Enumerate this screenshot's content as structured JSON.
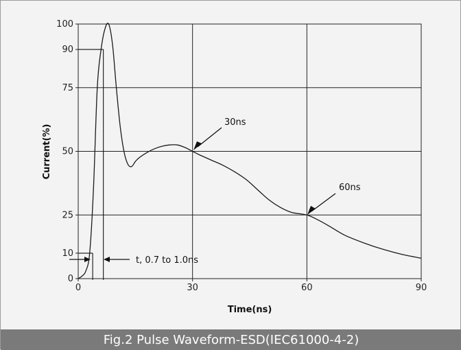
{
  "caption": "Fig.2 Pulse Waveform-ESD(IEC61000-4-2)",
  "colors": {
    "background": "#f3f3f3",
    "caption_bar": "#7a7a7a",
    "curve": "#1a1a1a",
    "grid": "#222222"
  },
  "chart_data": {
    "type": "line",
    "title": "",
    "xlabel": "Time(ns)",
    "ylabel": "Current(%)",
    "xlim": [
      0,
      90
    ],
    "ylim": [
      0,
      100
    ],
    "x_ticks": [
      0,
      30,
      60,
      90
    ],
    "y_ticks": [
      0,
      10,
      25,
      50,
      75,
      90,
      100
    ],
    "grid": true,
    "series": [
      {
        "x": [
          0,
          1,
          2,
          3,
          4,
          5,
          6,
          7,
          8,
          9,
          10,
          11,
          12,
          13,
          14,
          15,
          16,
          18,
          20,
          22,
          24,
          26,
          28,
          30,
          32,
          35,
          38,
          41,
          44,
          47,
          50,
          53,
          56,
          60,
          63,
          66,
          70,
          75,
          80,
          85,
          90
        ],
        "y": [
          0,
          1,
          3,
          10,
          35,
          75,
          90,
          98,
          100,
          92,
          75,
          60,
          50,
          45,
          44,
          46,
          47.5,
          49.5,
          51,
          52,
          52.5,
          52.5,
          51.5,
          50,
          48.5,
          46.5,
          44.5,
          42,
          39,
          35,
          31,
          28,
          26,
          25,
          23,
          20.5,
          17,
          14,
          11.5,
          9.5,
          8
        ]
      }
    ],
    "annotations": [
      {
        "text": "30ns",
        "x": 30,
        "y": 50
      },
      {
        "text": "60ns",
        "x": 60,
        "y": 25
      },
      {
        "text": "t, 0.7 to 1.0ns"
      }
    ]
  }
}
